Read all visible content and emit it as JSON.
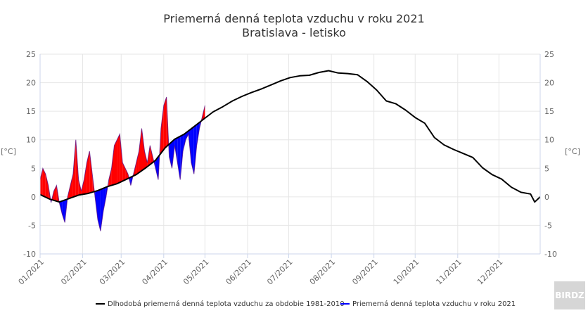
{
  "chart_data": {
    "type": "area",
    "title": "Priemerná denná teplota vzduchu v roku 2021",
    "subtitle": "Bratislava - letisko",
    "ylabel_left": "[°C]",
    "ylabel_right": "[°C]",
    "ylim": [
      -10,
      25
    ],
    "yticks": [
      25,
      20,
      15,
      10,
      5,
      0,
      -5,
      -10
    ],
    "xlim": [
      "2021-01-01",
      "2021-12-31"
    ],
    "xticks": [
      "01/2021",
      "02/2021",
      "03/2021",
      "04/2021",
      "05/2021",
      "06/2021",
      "07/2021",
      "08/2021",
      "09/2021",
      "10/2021",
      "11/2021",
      "12/2021"
    ],
    "grid": true,
    "legend_position": "bottom-right",
    "series": [
      {
        "name": "Dlhodobá priemerná denná teplota vzduchu za obdobie 1981-2010",
        "color": "#000000",
        "points": [
          [
            "2021-01-01",
            0.4
          ],
          [
            "2021-01-08",
            -0.4
          ],
          [
            "2021-01-15",
            -0.9
          ],
          [
            "2021-01-22",
            -0.3
          ],
          [
            "2021-01-29",
            0.3
          ],
          [
            "2021-02-05",
            0.6
          ],
          [
            "2021-02-12",
            1.1
          ],
          [
            "2021-02-19",
            1.8
          ],
          [
            "2021-02-26",
            2.3
          ],
          [
            "2021-03-05",
            3.1
          ],
          [
            "2021-03-12",
            3.9
          ],
          [
            "2021-03-19",
            5.1
          ],
          [
            "2021-03-26",
            6.4
          ],
          [
            "2021-04-02",
            8.6
          ],
          [
            "2021-04-09",
            10.1
          ],
          [
            "2021-04-16",
            11.0
          ],
          [
            "2021-04-23",
            12.3
          ],
          [
            "2021-04-30",
            13.6
          ],
          [
            "2021-05-07",
            14.9
          ],
          [
            "2021-05-14",
            15.8
          ],
          [
            "2021-05-21",
            16.8
          ],
          [
            "2021-05-28",
            17.6
          ],
          [
            "2021-06-04",
            18.3
          ],
          [
            "2021-06-11",
            18.9
          ],
          [
            "2021-06-18",
            19.6
          ],
          [
            "2021-06-25",
            20.3
          ],
          [
            "2021-07-02",
            20.9
          ],
          [
            "2021-07-09",
            21.2
          ],
          [
            "2021-07-16",
            21.3
          ],
          [
            "2021-07-23",
            21.8
          ],
          [
            "2021-07-30",
            22.1
          ],
          [
            "2021-08-06",
            21.7
          ],
          [
            "2021-08-13",
            21.6
          ],
          [
            "2021-08-20",
            21.4
          ],
          [
            "2021-08-27",
            20.2
          ],
          [
            "2021-09-03",
            18.7
          ],
          [
            "2021-09-10",
            16.8
          ],
          [
            "2021-09-17",
            16.3
          ],
          [
            "2021-09-24",
            15.2
          ],
          [
            "2021-10-01",
            13.9
          ],
          [
            "2021-10-08",
            12.9
          ],
          [
            "2021-10-15",
            10.4
          ],
          [
            "2021-10-22",
            9.1
          ],
          [
            "2021-10-29",
            8.3
          ],
          [
            "2021-11-05",
            7.6
          ],
          [
            "2021-11-12",
            6.9
          ],
          [
            "2021-11-19",
            5.1
          ],
          [
            "2021-11-26",
            3.9
          ],
          [
            "2021-12-03",
            3.1
          ],
          [
            "2021-12-10",
            1.7
          ],
          [
            "2021-12-17",
            0.8
          ],
          [
            "2021-12-24",
            0.5
          ],
          [
            "2021-12-27",
            -0.9
          ],
          [
            "2021-12-31",
            0.0
          ]
        ]
      },
      {
        "name": "Priemerná denná teplota vzduchu v roku 2021",
        "color": "#0000ff",
        "warm_color": "#ff0000",
        "cold_color": "#0000ff",
        "points": [
          [
            "2021-01-01",
            3.0
          ],
          [
            "2021-01-03",
            5.0
          ],
          [
            "2021-01-05",
            4.0
          ],
          [
            "2021-01-07",
            2.0
          ],
          [
            "2021-01-09",
            -1.0
          ],
          [
            "2021-01-11",
            1.0
          ],
          [
            "2021-01-13",
            2.0
          ],
          [
            "2021-01-15",
            -1.0
          ],
          [
            "2021-01-17",
            -3.0
          ],
          [
            "2021-01-19",
            -4.5
          ],
          [
            "2021-01-21",
            0.0
          ],
          [
            "2021-01-23",
            2.0
          ],
          [
            "2021-01-25",
            4.0
          ],
          [
            "2021-01-27",
            10.0
          ],
          [
            "2021-01-29",
            3.0
          ],
          [
            "2021-01-31",
            1.0
          ],
          [
            "2021-02-02",
            3.0
          ],
          [
            "2021-02-04",
            6.0
          ],
          [
            "2021-02-06",
            8.0
          ],
          [
            "2021-02-08",
            4.0
          ],
          [
            "2021-02-10",
            0.0
          ],
          [
            "2021-02-12",
            -4.0
          ],
          [
            "2021-02-14",
            -6.0
          ],
          [
            "2021-02-16",
            -2.5
          ],
          [
            "2021-02-18",
            0.0
          ],
          [
            "2021-02-20",
            3.0
          ],
          [
            "2021-02-22",
            5.0
          ],
          [
            "2021-02-24",
            9.0
          ],
          [
            "2021-02-26",
            10.0
          ],
          [
            "2021-02-28",
            11.0
          ],
          [
            "2021-03-02",
            6.0
          ],
          [
            "2021-03-04",
            5.0
          ],
          [
            "2021-03-06",
            4.0
          ],
          [
            "2021-03-08",
            2.0
          ],
          [
            "2021-03-10",
            4.0
          ],
          [
            "2021-03-12",
            6.0
          ],
          [
            "2021-03-14",
            8.0
          ],
          [
            "2021-03-16",
            12.0
          ],
          [
            "2021-03-18",
            8.0
          ],
          [
            "2021-03-20",
            6.0
          ],
          [
            "2021-03-22",
            9.0
          ],
          [
            "2021-03-24",
            7.0
          ],
          [
            "2021-03-26",
            5.0
          ],
          [
            "2021-03-28",
            3.0
          ],
          [
            "2021-03-30",
            12.0
          ],
          [
            "2021-04-01",
            16.0
          ],
          [
            "2021-04-03",
            17.5
          ],
          [
            "2021-04-05",
            7.0
          ],
          [
            "2021-04-07",
            5.0
          ],
          [
            "2021-04-09",
            9.0
          ],
          [
            "2021-04-11",
            6.0
          ],
          [
            "2021-04-13",
            3.0
          ],
          [
            "2021-04-15",
            8.0
          ],
          [
            "2021-04-17",
            10.0
          ],
          [
            "2021-04-19",
            11.0
          ],
          [
            "2021-04-21",
            6.0
          ],
          [
            "2021-04-23",
            4.0
          ],
          [
            "2021-04-25",
            9.0
          ],
          [
            "2021-04-27",
            12.0
          ],
          [
            "2021-04-29",
            14.0
          ],
          [
            "2021-05-01",
            16.0
          ]
        ]
      }
    ]
  },
  "watermark": "BIRDZ"
}
